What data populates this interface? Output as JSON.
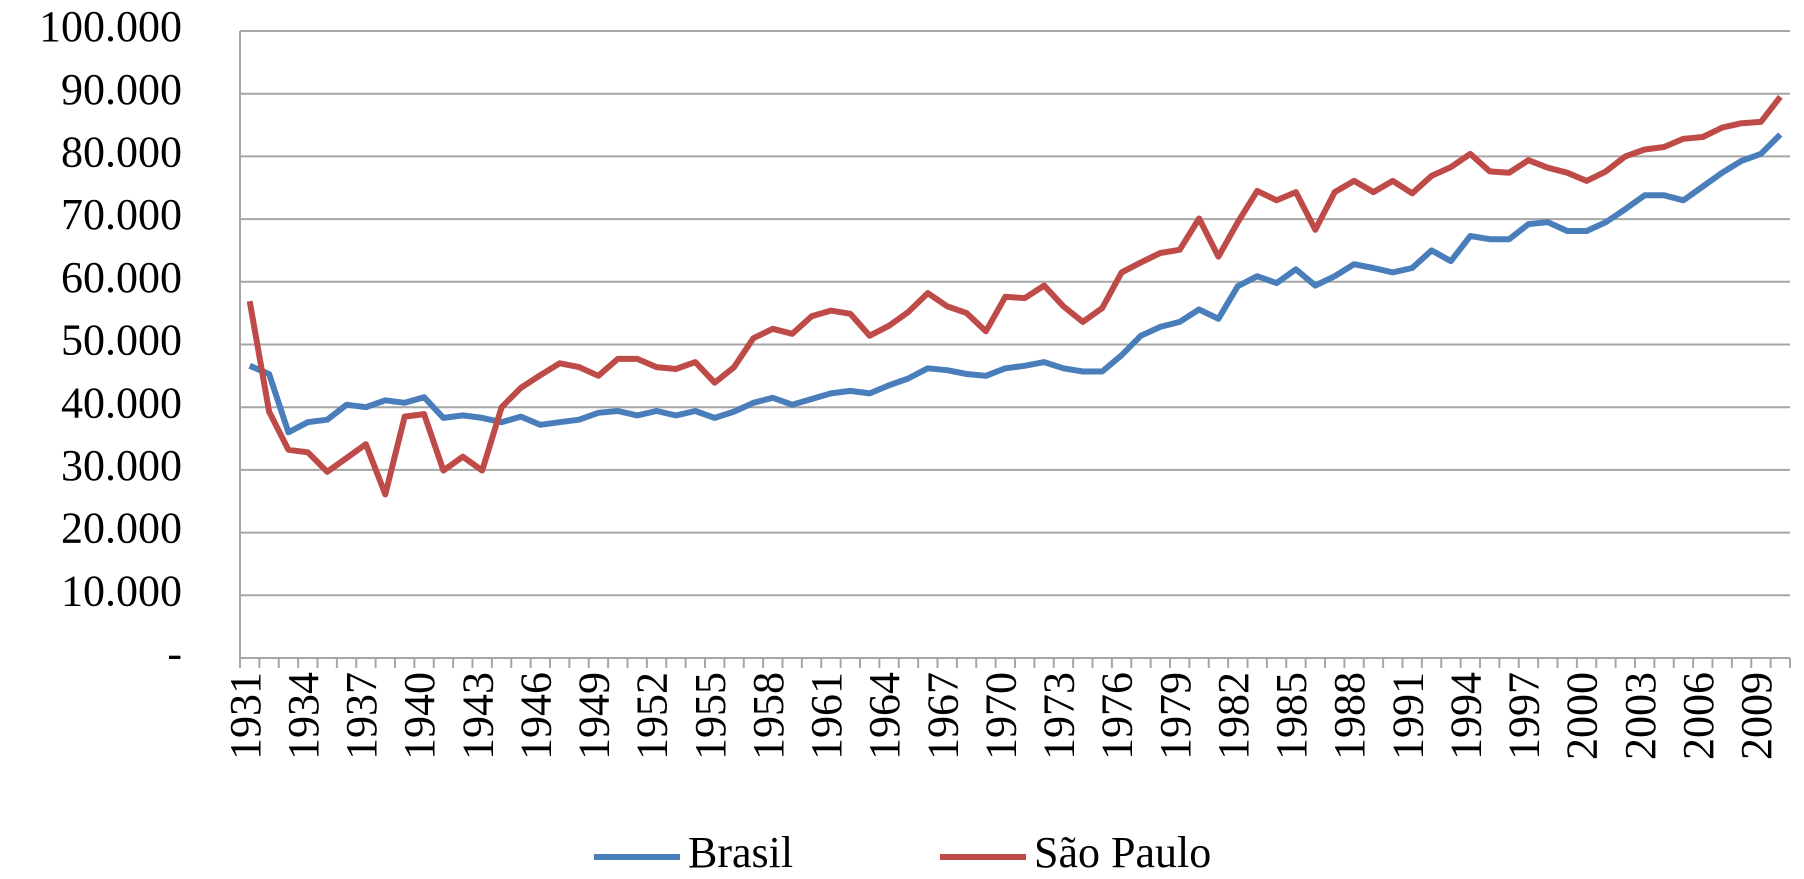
{
  "chart_data": {
    "type": "line",
    "x": [
      1931,
      1932,
      1933,
      1934,
      1935,
      1936,
      1937,
      1938,
      1939,
      1940,
      1941,
      1942,
      1943,
      1944,
      1945,
      1946,
      1947,
      1948,
      1949,
      1950,
      1951,
      1952,
      1953,
      1954,
      1955,
      1956,
      1957,
      1958,
      1959,
      1960,
      1961,
      1962,
      1963,
      1964,
      1965,
      1966,
      1967,
      1968,
      1969,
      1970,
      1971,
      1972,
      1973,
      1974,
      1975,
      1976,
      1977,
      1978,
      1979,
      1980,
      1981,
      1982,
      1983,
      1984,
      1985,
      1986,
      1987,
      1988,
      1989,
      1990,
      1991,
      1992,
      1993,
      1994,
      1995,
      1996,
      1997,
      1998,
      1999,
      2000,
      2001,
      2002,
      2003,
      2004,
      2005,
      2006,
      2007,
      2008,
      2009,
      2010
    ],
    "series": [
      {
        "name": "Brasil",
        "color": "#4a7ebb",
        "values": [
          46600,
          45300,
          36000,
          37600,
          38000,
          40400,
          40000,
          41100,
          40700,
          41600,
          38300,
          38700,
          38300,
          37600,
          38500,
          37200,
          37600,
          38000,
          39100,
          39400,
          38700,
          39400,
          38700,
          39400,
          38300,
          39300,
          40700,
          41500,
          40400,
          41300,
          42200,
          42600,
          42200,
          43500,
          44600,
          46200,
          45900,
          45300,
          45000,
          46200,
          46600,
          47200,
          46200,
          45700,
          45700,
          48300,
          51400,
          52800,
          53600,
          55600,
          54100,
          59300,
          60900,
          59800,
          62000,
          59400,
          60900,
          62800,
          62200,
          61500,
          62200,
          65000,
          63300,
          67300,
          66800,
          66800,
          69200,
          69500,
          68100,
          68100,
          69500,
          71600,
          73800,
          73800,
          73000,
          75200,
          77400,
          79300,
          80400,
          83500
        ]
      },
      {
        "name": "São Paulo",
        "color": "#be4b48",
        "values": [
          56900,
          39300,
          33200,
          32800,
          29700,
          31900,
          34100,
          26100,
          38500,
          38900,
          29900,
          32100,
          29900,
          40000,
          43100,
          45100,
          47000,
          46400,
          45000,
          47700,
          47700,
          46400,
          46100,
          47200,
          43900,
          46400,
          51000,
          52500,
          51700,
          54500,
          55400,
          54900,
          51400,
          53000,
          55200,
          58200,
          56100,
          55000,
          52100,
          57600,
          57400,
          59400,
          56100,
          53600,
          55800,
          61500,
          63100,
          64600,
          65100,
          70100,
          64000,
          69500,
          74500,
          73000,
          74300,
          68300,
          74300,
          76100,
          74300,
          76100,
          74100,
          76900,
          78300,
          80400,
          77600,
          77400,
          79400,
          78200,
          77400,
          76100,
          77600,
          80000,
          81100,
          81500,
          82800,
          83100,
          84600,
          85300,
          85500,
          89500
        ]
      }
    ],
    "xlim": [
      1930.5,
      2010.5
    ],
    "xticks": [
      1931,
      1934,
      1937,
      1940,
      1943,
      1946,
      1949,
      1952,
      1955,
      1958,
      1961,
      1964,
      1967,
      1970,
      1973,
      1976,
      1979,
      1982,
      1985,
      1988,
      1991,
      1994,
      1997,
      2000,
      2003,
      2006,
      2009
    ],
    "ylim": [
      0,
      100000
    ],
    "yticks": [
      {
        "value": 0,
        "label": "-"
      },
      {
        "value": 10000,
        "label": "10.000"
      },
      {
        "value": 20000,
        "label": "20.000"
      },
      {
        "value": 30000,
        "label": "30.000"
      },
      {
        "value": 40000,
        "label": "40.000"
      },
      {
        "value": 50000,
        "label": "50.000"
      },
      {
        "value": 60000,
        "label": "60.000"
      },
      {
        "value": 70000,
        "label": "70.000"
      },
      {
        "value": 80000,
        "label": "80.000"
      },
      {
        "value": 90000,
        "label": "90.000"
      },
      {
        "value": 100000,
        "label": "100.000"
      }
    ],
    "grid": true,
    "legend": "bottom"
  }
}
